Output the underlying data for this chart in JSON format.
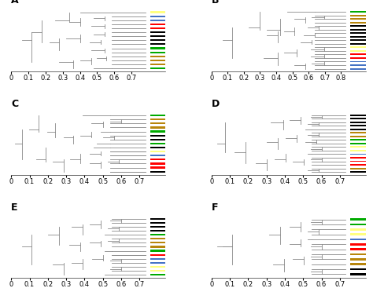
{
  "panels": [
    "A",
    "B",
    "C",
    "D",
    "E",
    "F"
  ],
  "panel_colors": {
    "A": {
      "dots": [
        "yellow",
        "blue",
        "blue",
        "red",
        "red",
        "black",
        "black",
        "black",
        "black",
        "green",
        "green",
        "olive",
        "olive",
        "olive",
        "green"
      ],
      "xlim": [
        0,
        0.8
      ],
      "xticks": [
        0,
        0.1,
        0.2,
        0.3,
        0.4,
        0.5,
        0.6,
        0.7
      ]
    },
    "B": {
      "dots": [
        "green",
        "olive",
        "olive",
        "olive",
        "black",
        "black",
        "black",
        "black",
        "black",
        "black",
        "yellow",
        "yellow",
        "red",
        "red",
        "blue",
        "blue",
        "blue"
      ],
      "xlim": [
        0,
        0.85
      ],
      "xticks": [
        0,
        0.1,
        0.2,
        0.3,
        0.4,
        0.5,
        0.6,
        0.7,
        0.8
      ]
    },
    "C": {
      "dots": [
        "green",
        "olive",
        "olive",
        "olive",
        "green",
        "black",
        "black",
        "green",
        "black",
        "yellow",
        "blue",
        "red",
        "red",
        "red",
        "black"
      ],
      "xlim": [
        0,
        0.75
      ],
      "xticks": [
        0,
        0.1,
        0.2,
        0.3,
        0.4,
        0.5,
        0.6,
        0.7
      ]
    },
    "D": {
      "dots": [
        "black",
        "black",
        "black",
        "black",
        "black",
        "olive",
        "olive",
        "green",
        "green",
        "yellow",
        "yellow",
        "blue",
        "red",
        "red",
        "red",
        "olive",
        "black"
      ],
      "xlim": [
        0,
        0.75
      ],
      "xticks": [
        0,
        0.1,
        0.2,
        0.3,
        0.4,
        0.5,
        0.6,
        0.7
      ]
    },
    "E": {
      "dots": [
        "black",
        "black",
        "black",
        "black",
        "green",
        "olive",
        "olive",
        "olive",
        "green",
        "red",
        "blue",
        "blue",
        "yellow",
        "yellow",
        "green"
      ],
      "xlim": [
        0,
        0.75
      ],
      "xticks": [
        0,
        0.1,
        0.2,
        0.3,
        0.4,
        0.5,
        0.6,
        0.7
      ]
    },
    "F": {
      "dots": [
        "green",
        "green",
        "yellow",
        "yellow",
        "blue",
        "red",
        "red",
        "olive",
        "olive",
        "olive",
        "black",
        "black"
      ],
      "xlim": [
        0,
        0.75
      ],
      "xticks": [
        0,
        0.1,
        0.2,
        0.3,
        0.4,
        0.5,
        0.6,
        0.7
      ]
    }
  },
  "color_map": {
    "yellow": "#FFFF80",
    "blue": "#4472C4",
    "red": "#FF0000",
    "black": "#000000",
    "green": "#00AA00",
    "olive": "#B8860B",
    "white": "#FFFFFF"
  },
  "bg_color": "#FFFFFF",
  "line_color": "#888888",
  "label_fontsize": 6,
  "panel_label_fontsize": 9
}
